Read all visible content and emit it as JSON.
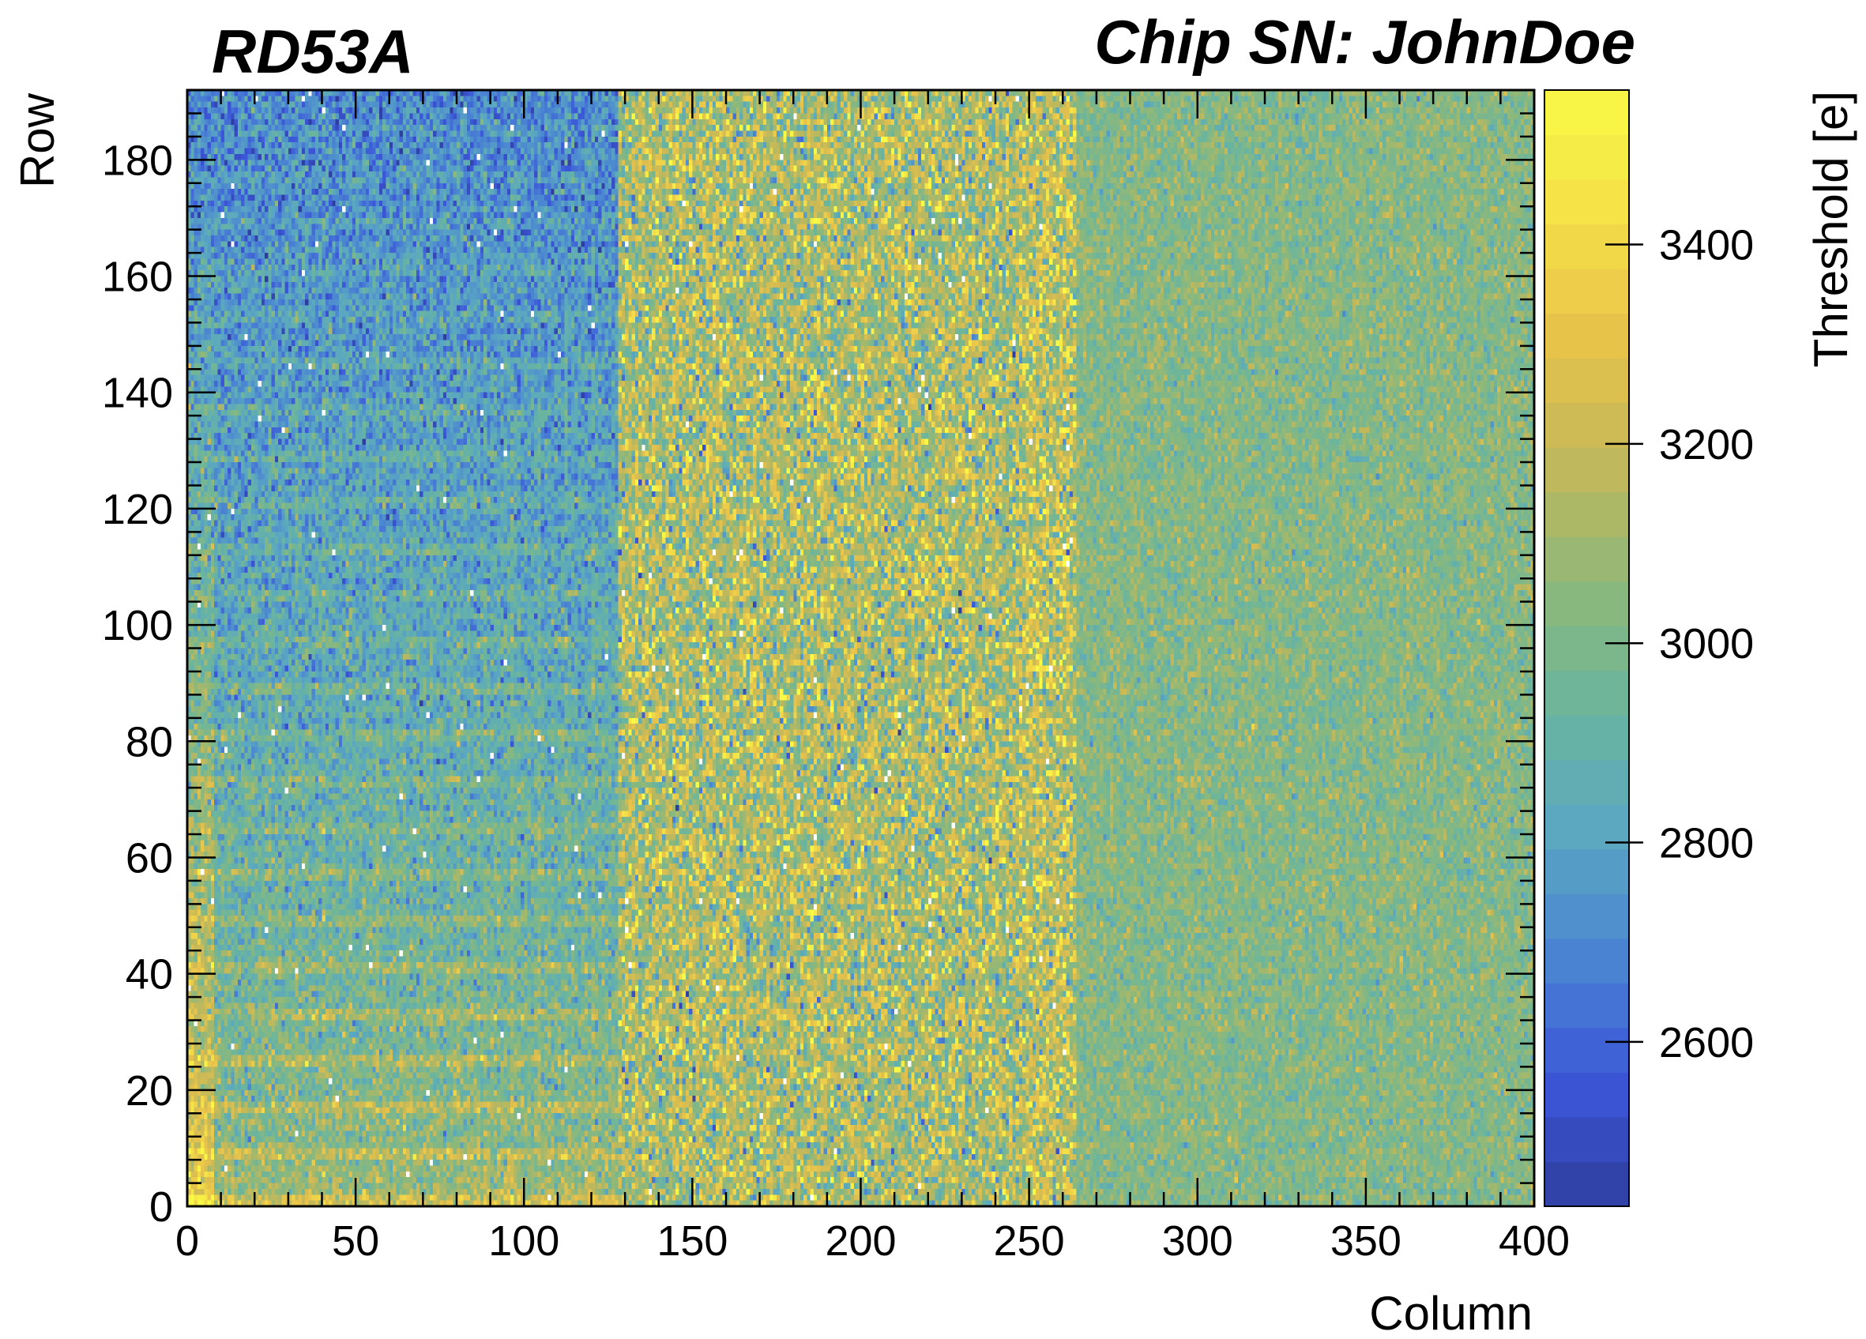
{
  "chart_data": {
    "type": "heatmap",
    "top_left_label": "RD53A",
    "title": "Chip SN: JohnDoe",
    "xlabel": "Column",
    "ylabel": "Row",
    "zlabel": "Threshold [e]",
    "xlim": [
      0,
      400
    ],
    "ylim": [
      0,
      192
    ],
    "zlim": [
      2435,
      3555
    ],
    "x_ticks": [
      0,
      50,
      100,
      150,
      200,
      250,
      300,
      350,
      400
    ],
    "y_ticks": [
      0,
      20,
      40,
      60,
      80,
      100,
      120,
      140,
      160,
      180
    ],
    "z_ticks": [
      2600,
      2800,
      3000,
      3200,
      3400
    ],
    "n_columns": 400,
    "n_rows": 192,
    "regions": [
      {
        "col_start": 0,
        "col_end": 128,
        "mean_threshold_top": 2700,
        "mean_threshold_bottom": 3100
      },
      {
        "col_start": 128,
        "col_end": 264,
        "mean_threshold": 3120
      },
      {
        "col_start": 264,
        "col_end": 400,
        "mean_threshold": 3020
      }
    ],
    "colormap": [
      "#2f3e9e",
      "#3b56d9",
      "#4a84d2",
      "#5aa7c2",
      "#6ab59e",
      "#8eb87a",
      "#c3b85a",
      "#e8c24a",
      "#f4e048",
      "#f9fa45"
    ],
    "grid": false
  }
}
